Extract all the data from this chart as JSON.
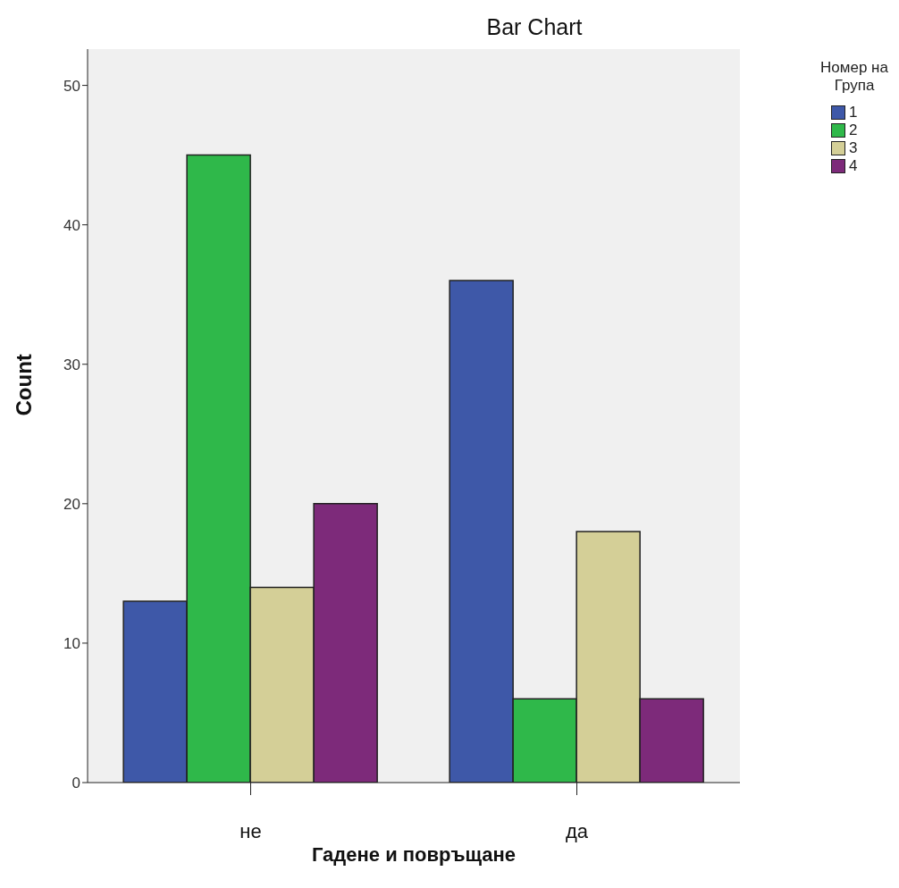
{
  "chart_data": {
    "type": "bar",
    "title": "Bar Chart",
    "xlabel": "Гадене и повръщане",
    "ylabel": "Count",
    "legend_title": "Номер на Група",
    "categories": [
      "не",
      "да"
    ],
    "series": [
      {
        "name": "1",
        "color": "#3e58a8",
        "values": [
          13,
          36
        ]
      },
      {
        "name": "2",
        "color": "#2fb84a",
        "values": [
          45,
          6
        ]
      },
      {
        "name": "3",
        "color": "#d4cf97",
        "values": [
          14,
          18
        ]
      },
      {
        "name": "4",
        "color": "#7d2a7a",
        "values": [
          20,
          6
        ]
      }
    ],
    "ylim": [
      0,
      52.6
    ],
    "yticks": [
      0,
      10,
      20,
      30,
      40,
      50
    ],
    "grid": false,
    "legend": "top right"
  }
}
